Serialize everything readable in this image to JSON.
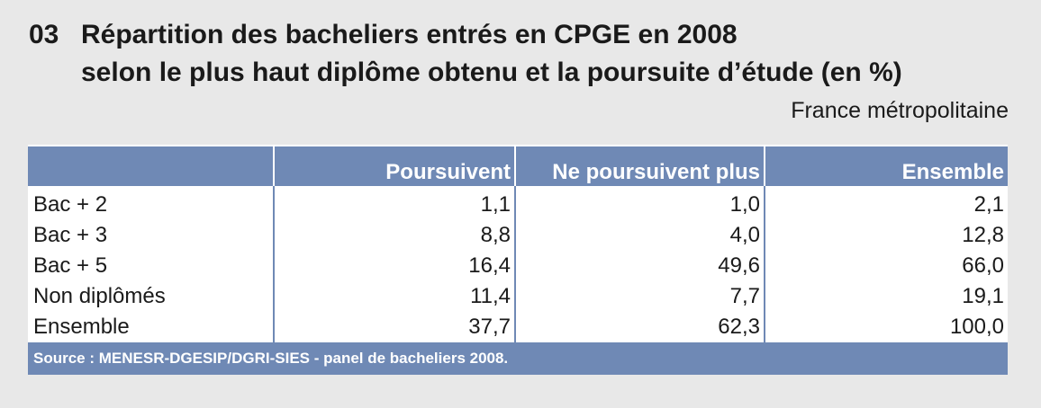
{
  "title": {
    "number": "03",
    "line1": "Répartition des bacheliers entrés en CPGE en 2008",
    "line2": "selon le plus haut diplôme obtenu et la poursuite d’étude (en %)"
  },
  "subtitle": "France métropolitaine",
  "table": {
    "headers": [
      "",
      "Poursuivent",
      "Ne poursuivent plus",
      "Ensemble"
    ],
    "rows": [
      {
        "label": "Bac + 2",
        "values": [
          "1,1",
          "1,0",
          "2,1"
        ]
      },
      {
        "label": "Bac + 3",
        "values": [
          "8,8",
          "4,0",
          "12,8"
        ]
      },
      {
        "label": "Bac + 5",
        "values": [
          "16,4",
          "49,6",
          "66,0"
        ]
      },
      {
        "label": "Non diplômés",
        "values": [
          "11,4",
          "7,7",
          "19,1"
        ]
      },
      {
        "label": "Ensemble",
        "values": [
          "37,7",
          "62,3",
          "100,0"
        ]
      }
    ],
    "source": "Source : MENESR-DGESIP/DGRI-SIES - panel de bacheliers 2008."
  },
  "colors": {
    "header_bg": "#6f89b5",
    "page_bg": "#e8e8e8"
  }
}
